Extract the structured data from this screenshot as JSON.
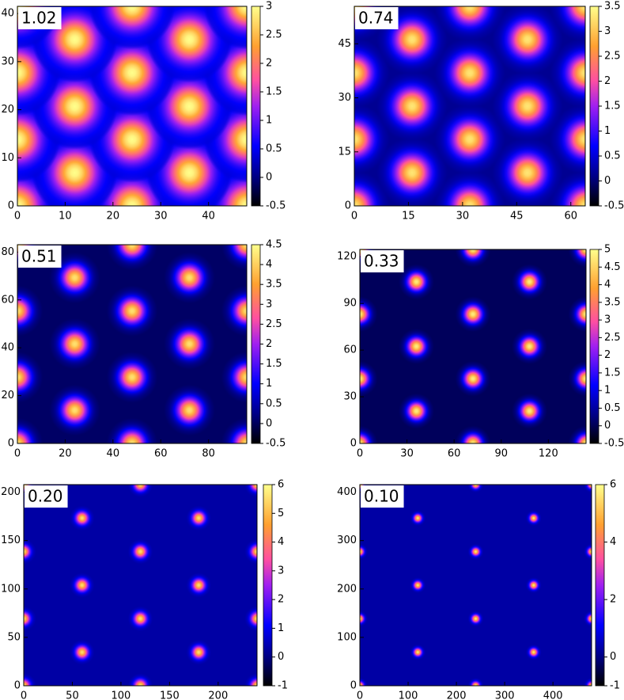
{
  "chart_data": [
    {
      "type": "heatmap",
      "label": "1.02",
      "xlim": [
        0,
        48
      ],
      "ylim": [
        0,
        41.5
      ],
      "xticks": [
        0,
        10,
        20,
        30,
        40
      ],
      "yticks": [
        0,
        10,
        20,
        30,
        40
      ],
      "clim": [
        -0.5,
        3
      ],
      "cticks": [
        -0.5,
        0,
        0.5,
        1,
        1.5,
        2,
        2.5,
        3
      ],
      "background": 0.35,
      "peak": 3,
      "sigma": 3,
      "spots": {
        "x": [
          0,
          24,
          48,
          12,
          36,
          0,
          24,
          48,
          12,
          36,
          0,
          24,
          48,
          12,
          36,
          0,
          24,
          48
        ],
        "y": [
          0,
          0,
          0,
          6.9,
          6.9,
          13.8,
          13.8,
          13.8,
          20.7,
          20.7,
          27.7,
          27.7,
          27.7,
          34.6,
          34.6,
          41.5,
          41.5,
          41.5
        ]
      }
    },
    {
      "type": "heatmap",
      "label": "0.74",
      "xlim": [
        0,
        64
      ],
      "ylim": [
        0,
        55.4
      ],
      "xticks": [
        0,
        15,
        30,
        45,
        60
      ],
      "yticks": [
        0,
        15,
        30,
        45
      ],
      "clim": [
        -0.5,
        3.5
      ],
      "cticks": [
        -0.5,
        0,
        0.5,
        1,
        1.5,
        2,
        2.5,
        3,
        3.5
      ],
      "background": 0.15,
      "peak": 3.3,
      "sigma": 3.3,
      "spots": {
        "x": [
          0,
          32,
          64,
          16,
          48,
          0,
          32,
          64,
          16,
          48,
          0,
          32,
          64,
          16,
          48,
          0,
          32,
          64
        ],
        "y": [
          0,
          0,
          0,
          9.2,
          9.2,
          18.5,
          18.5,
          18.5,
          27.7,
          27.7,
          36.9,
          36.9,
          36.9,
          46.2,
          46.2,
          55.4,
          55.4,
          55.4
        ]
      }
    },
    {
      "type": "heatmap",
      "label": "0.51",
      "xlim": [
        0,
        96
      ],
      "ylim": [
        0,
        83.1
      ],
      "xticks": [
        0,
        20,
        40,
        60,
        80
      ],
      "yticks": [
        0,
        20,
        40,
        60,
        80
      ],
      "clim": [
        -0.5,
        4.5
      ],
      "cticks": [
        -0.5,
        0,
        0.5,
        1,
        1.5,
        2,
        2.5,
        3,
        3.5,
        4,
        4.5
      ],
      "background": 0.05,
      "peak": 4.2,
      "sigma": 3.6,
      "spots": {
        "x": [
          0,
          48,
          96,
          24,
          72,
          0,
          48,
          96,
          24,
          72,
          0,
          48,
          96,
          24,
          72,
          0,
          48,
          96
        ],
        "y": [
          0,
          0,
          0,
          13.9,
          13.9,
          27.7,
          27.7,
          27.7,
          41.6,
          41.6,
          55.4,
          55.4,
          55.4,
          69.3,
          69.3,
          83.1,
          83.1,
          83.1
        ]
      }
    },
    {
      "type": "heatmap",
      "label": "0.33",
      "xlim": [
        0,
        144
      ],
      "ylim": [
        0,
        124.7
      ],
      "xticks": [
        0,
        30,
        60,
        90,
        120
      ],
      "yticks": [
        0,
        30,
        60,
        90,
        120
      ],
      "clim": [
        -0.5,
        5
      ],
      "cticks": [
        -0.5,
        0,
        0.5,
        1,
        1.5,
        2,
        2.5,
        3,
        3.5,
        4,
        4.5,
        5
      ],
      "background": 0.05,
      "peak": 4.8,
      "sigma": 3.8,
      "spots": {
        "x": [
          0,
          72,
          144,
          36,
          108,
          0,
          72,
          144,
          36,
          108,
          0,
          72,
          144,
          36,
          108,
          0,
          72,
          144
        ],
        "y": [
          0,
          0,
          0,
          20.8,
          20.8,
          41.6,
          41.6,
          41.6,
          62.4,
          62.4,
          83.1,
          83.1,
          83.1,
          103.9,
          103.9,
          124.7,
          124.7,
          124.7
        ]
      }
    },
    {
      "type": "heatmap",
      "label": "0.20",
      "xlim": [
        0,
        240
      ],
      "ylim": [
        0,
        207.8
      ],
      "xticks": [
        0,
        50,
        100,
        150,
        200
      ],
      "yticks": [
        0,
        50,
        100,
        150,
        200
      ],
      "clim": [
        -1,
        6
      ],
      "cticks": [
        -1,
        0,
        1,
        2,
        3,
        4,
        5,
        6
      ],
      "background": 0.3,
      "peak": 5.5,
      "sigma": 4.3,
      "spots": {
        "x": [
          0,
          120,
          240,
          60,
          180,
          0,
          120,
          240,
          60,
          180,
          0,
          120,
          240,
          60,
          180,
          0,
          120,
          240
        ],
        "y": [
          0,
          0,
          0,
          34.6,
          34.6,
          69.3,
          69.3,
          69.3,
          103.9,
          103.9,
          138.6,
          138.6,
          138.6,
          173.2,
          173.2,
          207.8,
          207.8,
          207.8
        ]
      }
    },
    {
      "type": "heatmap",
      "label": "0.10",
      "xlim": [
        0,
        480
      ],
      "ylim": [
        0,
        415.7
      ],
      "xticks": [
        0,
        100,
        200,
        300,
        400
      ],
      "yticks": [
        0,
        100,
        200,
        300,
        400
      ],
      "clim": [
        -1,
        6
      ],
      "cticks": [
        -1,
        0,
        2,
        4,
        6
      ],
      "background": 0.3,
      "peak": 5.6,
      "sigma": 5.5,
      "spots": {
        "x": [
          0,
          240,
          480,
          120,
          360,
          0,
          240,
          480,
          120,
          360,
          0,
          240,
          480,
          120,
          360,
          0,
          240,
          480
        ],
        "y": [
          0,
          0,
          0,
          69.3,
          69.3,
          138.6,
          138.6,
          138.6,
          207.8,
          207.8,
          277.1,
          277.1,
          277.1,
          346.4,
          346.4,
          415.7,
          415.7,
          415.7
        ]
      }
    }
  ]
}
